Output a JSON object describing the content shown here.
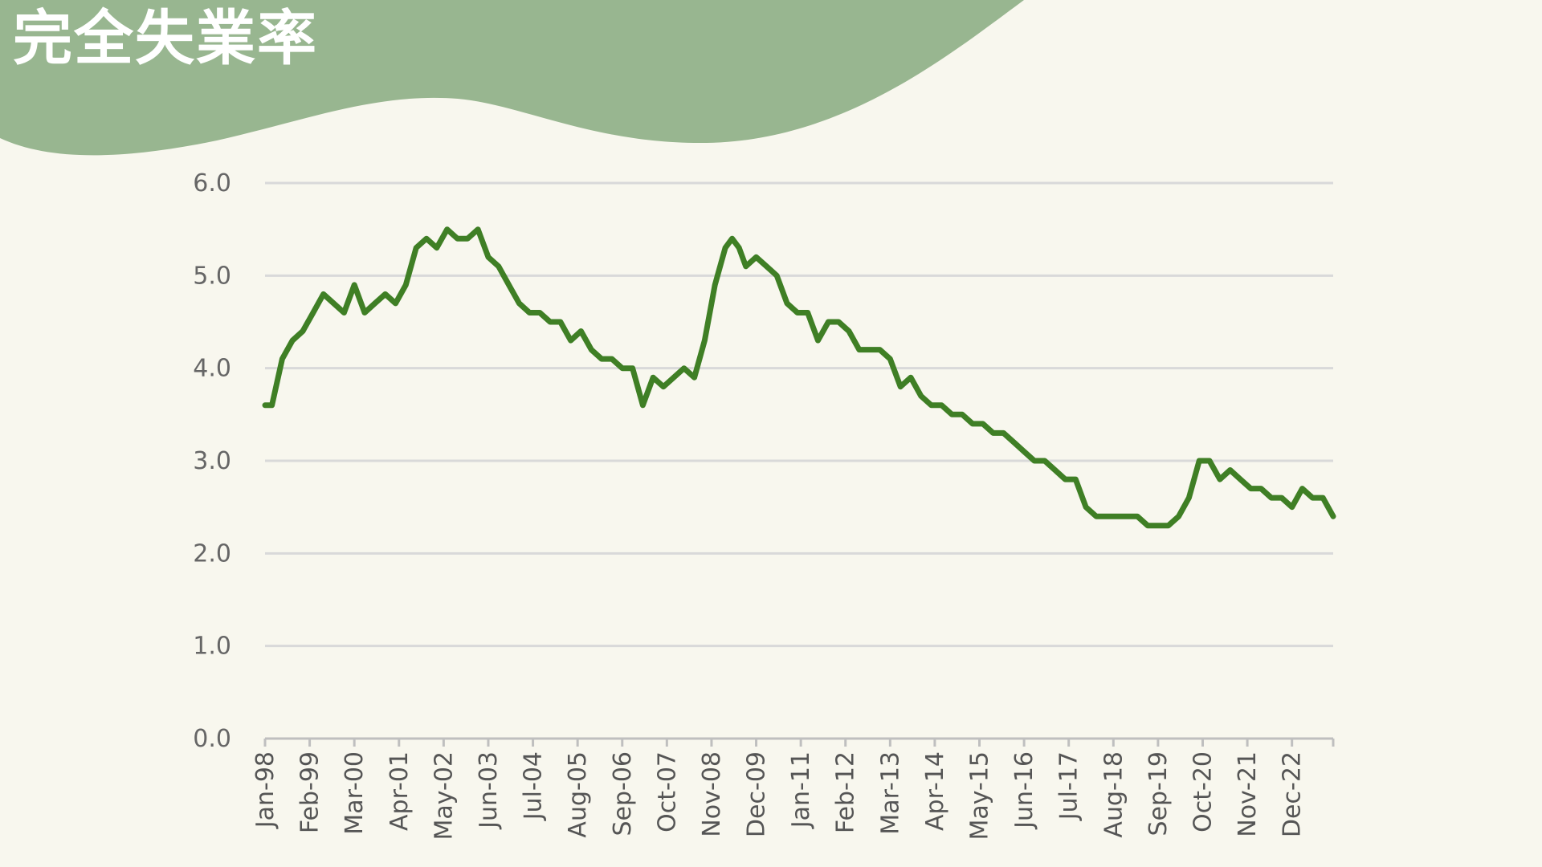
{
  "title": "完全失業率",
  "colors": {
    "background": "#f8f7ee",
    "header_shape": "#98b690",
    "title_text": "#ffffff",
    "line": "#3f7f25",
    "grid": "#d9d9d9",
    "axis": "#bfbfbf"
  },
  "chart_data": {
    "type": "line",
    "title": "",
    "xlabel": "",
    "ylabel": "",
    "ylim": [
      0,
      6
    ],
    "y_ticks": [
      "0.0",
      "1.0",
      "2.0",
      "3.0",
      "4.0",
      "5.0",
      "6.0"
    ],
    "x_ticks": [
      "Jan-98",
      "Feb-99",
      "Mar-00",
      "Apr-01",
      "May-02",
      "Jun-03",
      "Jul-04",
      "Aug-05",
      "Sep-06",
      "Oct-07",
      "Nov-08",
      "Dec-09",
      "Jan-11",
      "Feb-12",
      "Mar-13",
      "Apr-14",
      "May-15",
      "Jun-16",
      "Jul-17",
      "Aug-18",
      "Sep-19",
      "Oct-20",
      "Nov-21",
      "Dec-22"
    ],
    "grid": true,
    "series": [
      {
        "color": "#3f7f25",
        "x": [
          "1998-01",
          "1998-03",
          "1998-06",
          "1998-09",
          "1998-12",
          "1999-03",
          "1999-06",
          "1999-09",
          "1999-12",
          "2000-03",
          "2000-06",
          "2000-09",
          "2000-12",
          "2001-03",
          "2001-06",
          "2001-09",
          "2001-12",
          "2002-03",
          "2002-06",
          "2002-09",
          "2002-12",
          "2003-03",
          "2003-06",
          "2003-09",
          "2003-12",
          "2004-03",
          "2004-06",
          "2004-09",
          "2004-12",
          "2005-03",
          "2005-06",
          "2005-09",
          "2005-12",
          "2006-03",
          "2006-06",
          "2006-09",
          "2006-12",
          "2007-03",
          "2007-06",
          "2007-09",
          "2007-12",
          "2008-03",
          "2008-06",
          "2008-09",
          "2008-12",
          "2009-03",
          "2009-05",
          "2009-07",
          "2009-09",
          "2009-12",
          "2010-03",
          "2010-06",
          "2010-09",
          "2010-12",
          "2011-03",
          "2011-06",
          "2011-09",
          "2011-12",
          "2012-03",
          "2012-06",
          "2012-09",
          "2012-12",
          "2013-03",
          "2013-06",
          "2013-09",
          "2013-12",
          "2014-03",
          "2014-06",
          "2014-09",
          "2014-12",
          "2015-03",
          "2015-06",
          "2015-09",
          "2015-12",
          "2016-03",
          "2016-06",
          "2016-09",
          "2016-12",
          "2017-03",
          "2017-06",
          "2017-09",
          "2017-12",
          "2018-03",
          "2018-06",
          "2018-09",
          "2018-12",
          "2019-03",
          "2019-06",
          "2019-09",
          "2019-12",
          "2020-03",
          "2020-06",
          "2020-09",
          "2020-12",
          "2021-03",
          "2021-06",
          "2021-09",
          "2021-12",
          "2022-03",
          "2022-06",
          "2022-09",
          "2022-12",
          "2023-03",
          "2023-06",
          "2023-09",
          "2023-12"
        ],
        "values": [
          3.6,
          3.6,
          4.1,
          4.3,
          4.4,
          4.6,
          4.8,
          4.7,
          4.6,
          4.9,
          4.6,
          4.7,
          4.8,
          4.7,
          4.9,
          5.3,
          5.4,
          5.3,
          5.5,
          5.4,
          5.4,
          5.5,
          5.2,
          5.1,
          4.9,
          4.7,
          4.6,
          4.6,
          4.5,
          4.5,
          4.3,
          4.4,
          4.2,
          4.1,
          4.1,
          4.0,
          4.0,
          3.6,
          3.9,
          3.8,
          3.9,
          4.0,
          3.9,
          4.3,
          4.9,
          5.3,
          5.4,
          5.3,
          5.1,
          5.2,
          5.1,
          5.0,
          4.7,
          4.6,
          4.6,
          4.3,
          4.5,
          4.5,
          4.4,
          4.2,
          4.2,
          4.2,
          4.1,
          3.8,
          3.9,
          3.7,
          3.6,
          3.6,
          3.5,
          3.5,
          3.4,
          3.4,
          3.3,
          3.3,
          3.2,
          3.1,
          3.0,
          3.0,
          2.9,
          2.8,
          2.8,
          2.5,
          2.4,
          2.4,
          2.4,
          2.4,
          2.4,
          2.3,
          2.3,
          2.3,
          2.4,
          2.6,
          3.0,
          3.0,
          2.8,
          2.9,
          2.8,
          2.7,
          2.7,
          2.6,
          2.6,
          2.5,
          2.7,
          2.6,
          2.6,
          2.4
        ]
      }
    ]
  }
}
